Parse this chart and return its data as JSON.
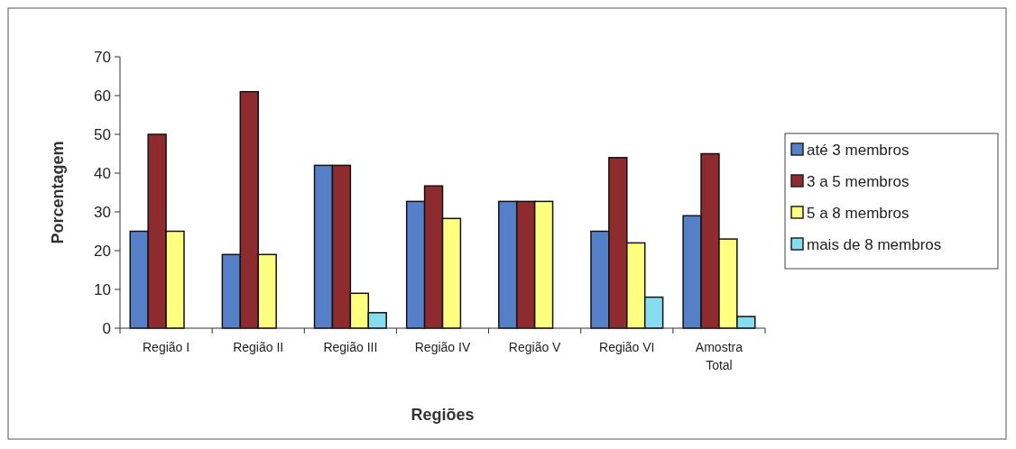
{
  "chart_data": {
    "type": "bar",
    "xlabel": "Regiões",
    "ylabel": "Porcentagem",
    "categories": [
      "Região I",
      "Região II",
      "Região III",
      "Região IV",
      "Região V",
      "Região VI",
      "Amostra Total"
    ],
    "series": [
      {
        "name": "até 3 membros",
        "color": "#5580c8",
        "values": [
          25,
          19,
          42,
          32.7,
          32.7,
          25,
          29
        ]
      },
      {
        "name": "3 a 5 membros",
        "color": "#8e2b2e",
        "values": [
          50,
          61,
          42,
          36.7,
          32.7,
          44,
          45
        ]
      },
      {
        "name": "5 a 8 membros",
        "color": "#ffff80",
        "values": [
          25,
          19,
          9,
          28.3,
          32.7,
          22,
          23
        ]
      },
      {
        "name": "mais de 8 membros",
        "color": "#88dcf0",
        "values": [
          null,
          null,
          4,
          null,
          null,
          8,
          3
        ]
      }
    ],
    "ylim": [
      0,
      70
    ],
    "yticks": [
      0,
      10,
      20,
      30,
      40,
      50,
      60,
      70
    ],
    "grid": false,
    "legend": "right"
  }
}
